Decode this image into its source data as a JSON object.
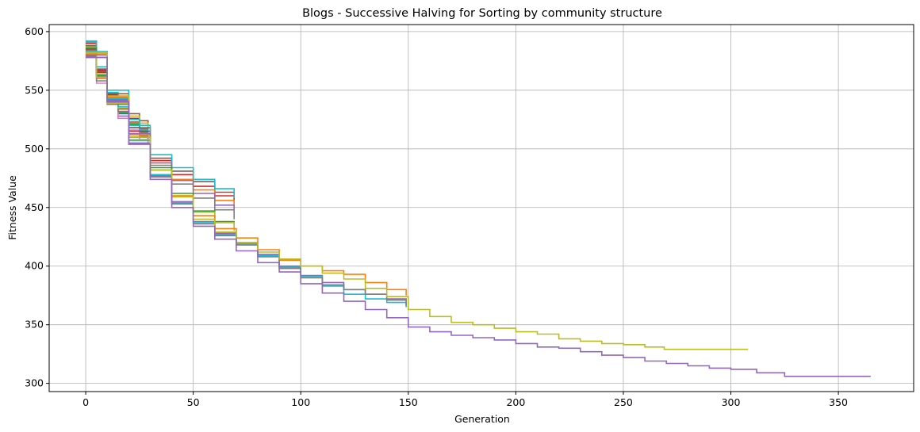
{
  "chart_data": {
    "type": "line",
    "title": "Blogs - Successive Halving for Sorting by community structure",
    "xlabel": "Generation",
    "ylabel": "Fitness Value",
    "xlim": [
      -17,
      385
    ],
    "ylim": [
      293,
      606
    ],
    "xticks": [
      0,
      50,
      100,
      150,
      200,
      250,
      300,
      350
    ],
    "yticks": [
      300,
      350,
      400,
      450,
      500,
      550,
      600
    ],
    "grid": true,
    "colors": {
      "blue": "#1f77b4",
      "orange": "#ff7f0e",
      "green": "#2ca02c",
      "red": "#d62728",
      "purple": "#9467bd",
      "brown": "#8c564b",
      "pink": "#e377c2",
      "gray": "#7f7f7f",
      "olive": "#bcbd22",
      "cyan": "#17becf"
    },
    "series": [
      {
        "color": "#1f77b4",
        "x": [
          0,
          5,
          10,
          15,
          20,
          25,
          29
        ],
        "y": [
          588,
          566,
          545,
          530,
          518,
          510,
          505
        ]
      },
      {
        "color": "#ff7f0e",
        "x": [
          0,
          5,
          10,
          15,
          20,
          25,
          29
        ],
        "y": [
          580,
          560,
          542,
          532,
          522,
          516,
          512
        ]
      },
      {
        "color": "#2ca02c",
        "x": [
          0,
          5,
          10,
          15,
          20,
          25,
          29
        ],
        "y": [
          585,
          563,
          544,
          531,
          521,
          514,
          509
        ]
      },
      {
        "color": "#d62728",
        "x": [
          0,
          5,
          10,
          15,
          20,
          25,
          29
        ],
        "y": [
          590,
          567,
          546,
          534,
          526,
          520,
          517
        ]
      },
      {
        "color": "#9467bd",
        "x": [
          0,
          5,
          10,
          15,
          20,
          25,
          29
        ],
        "y": [
          583,
          561,
          540,
          528,
          518,
          511,
          507
        ]
      },
      {
        "color": "#8c564b",
        "x": [
          0,
          5,
          10,
          15,
          20,
          25,
          29
        ],
        "y": [
          586,
          566,
          548,
          538,
          530,
          524,
          520
        ]
      },
      {
        "color": "#e377c2",
        "x": [
          0,
          5,
          10,
          15,
          20,
          25,
          29
        ],
        "y": [
          578,
          556,
          538,
          526,
          516,
          508,
          504
        ]
      },
      {
        "color": "#7f7f7f",
        "x": [
          0,
          5,
          10,
          15,
          20,
          25,
          29
        ],
        "y": [
          582,
          562,
          543,
          532,
          523,
          517,
          513
        ]
      },
      {
        "color": "#bcbd22",
        "x": [
          0,
          5,
          10,
          15,
          20,
          25,
          29
        ],
        "y": [
          587,
          565,
          545,
          535,
          528,
          522,
          518
        ]
      },
      {
        "color": "#17becf",
        "x": [
          0,
          5,
          10,
          15,
          20,
          25,
          29
        ],
        "y": [
          591,
          568,
          548,
          536,
          525,
          516,
          511
        ]
      },
      {
        "color": "#d62728",
        "x": [
          0,
          5,
          10,
          20,
          30,
          40,
          50,
          60,
          69
        ],
        "y": [
          585,
          565,
          545,
          515,
          490,
          478,
          468,
          460,
          451
        ]
      },
      {
        "color": "#8c564b",
        "x": [
          0,
          5,
          10,
          20,
          30,
          40,
          50,
          60,
          69
        ],
        "y": [
          588,
          568,
          547,
          518,
          492,
          481,
          472,
          463,
          455
        ]
      },
      {
        "color": "#17becf",
        "x": [
          0,
          5,
          10,
          20,
          30,
          40,
          50,
          60,
          69
        ],
        "y": [
          592,
          570,
          550,
          520,
          495,
          484,
          474,
          466,
          458
        ]
      },
      {
        "color": "#ff7f0e",
        "x": [
          0,
          5,
          10,
          20,
          30,
          40,
          50,
          60,
          69
        ],
        "y": [
          580,
          560,
          540,
          512,
          488,
          474,
          465,
          456,
          450
        ]
      },
      {
        "color": "#9467bd",
        "x": [
          0,
          5,
          10,
          20,
          30,
          40,
          50,
          60,
          69
        ],
        "y": [
          584,
          563,
          542,
          513,
          488,
          473,
          462,
          452,
          445
        ]
      },
      {
        "color": "#7f7f7f",
        "x": [
          0,
          5,
          10,
          20,
          30,
          40,
          50,
          60,
          69
        ],
        "y": [
          579,
          558,
          538,
          510,
          486,
          470,
          458,
          448,
          440
        ]
      },
      {
        "color": "#2ca02c",
        "x": [
          0,
          5,
          10,
          20,
          30,
          40,
          50,
          60,
          69
        ],
        "y": [
          586,
          563,
          540,
          510,
          484,
          462,
          447,
          438,
          432
        ]
      },
      {
        "color": "#bcbd22",
        "x": [
          0,
          5,
          10,
          20,
          30,
          40,
          50,
          60,
          69
        ],
        "y": [
          583,
          561,
          539,
          508,
          482,
          460,
          446,
          437,
          430
        ]
      },
      {
        "color": "#ff7f0e",
        "x": [
          0,
          10,
          20,
          30,
          40,
          50,
          60,
          70,
          80,
          90,
          100,
          110,
          120,
          130,
          140,
          149
        ],
        "y": [
          581,
          544,
          510,
          482,
          460,
          443,
          432,
          424,
          414,
          405,
          400,
          396,
          393,
          386,
          380,
          375
        ]
      },
      {
        "color": "#9467bd",
        "x": [
          0,
          10,
          20,
          30,
          40,
          50,
          60,
          70,
          80,
          90,
          100,
          110,
          120,
          130,
          140,
          149
        ],
        "y": [
          580,
          541,
          505,
          477,
          455,
          438,
          428,
          420,
          410,
          400,
          392,
          386,
          380,
          376,
          372,
          369
        ]
      },
      {
        "color": "#17becf",
        "x": [
          0,
          10,
          20,
          30,
          40,
          50,
          60,
          70,
          80,
          90,
          100,
          110,
          120,
          130,
          140,
          149
        ],
        "y": [
          583,
          543,
          507,
          478,
          454,
          437,
          427,
          419,
          409,
          399,
          391,
          383,
          376,
          372,
          369,
          365
        ]
      },
      {
        "color": "#7f7f7f",
        "x": [
          0,
          10,
          20,
          30,
          40,
          50,
          60,
          70,
          80,
          90,
          100,
          110,
          120,
          130,
          140,
          149
        ],
        "y": [
          578,
          540,
          504,
          476,
          453,
          436,
          426,
          418,
          408,
          398,
          390,
          384,
          380,
          376,
          371,
          366
        ]
      },
      {
        "color": "#bcbd22",
        "x": [
          0,
          10,
          20,
          30,
          40,
          50,
          60,
          70,
          80,
          90,
          100,
          110,
          120,
          130,
          140,
          150,
          160,
          170,
          180,
          190,
          200,
          210,
          220,
          230,
          240,
          250,
          260,
          269,
          280,
          290,
          300,
          308
        ],
        "y": [
          582,
          545,
          510,
          482,
          459,
          440,
          429,
          420,
          412,
          406,
          400,
          394,
          389,
          381,
          374,
          363,
          357,
          352,
          350,
          347,
          344,
          342,
          338,
          336,
          334,
          333,
          331,
          329,
          329,
          329,
          329,
          329
        ]
      },
      {
        "color": "#9467bd",
        "x": [
          0,
          10,
          20,
          30,
          40,
          50,
          60,
          70,
          80,
          90,
          100,
          110,
          120,
          130,
          140,
          150,
          160,
          170,
          180,
          190,
          200,
          210,
          220,
          230,
          240,
          250,
          260,
          270,
          280,
          290,
          300,
          312,
          325,
          340,
          355,
          365
        ],
        "y": [
          578,
          540,
          504,
          474,
          450,
          434,
          423,
          413,
          403,
          395,
          385,
          377,
          370,
          363,
          356,
          348,
          344,
          341,
          339,
          337,
          334,
          331,
          330,
          327,
          324,
          322,
          319,
          317,
          315,
          313,
          312,
          309,
          306,
          306,
          306,
          306
        ]
      }
    ]
  }
}
